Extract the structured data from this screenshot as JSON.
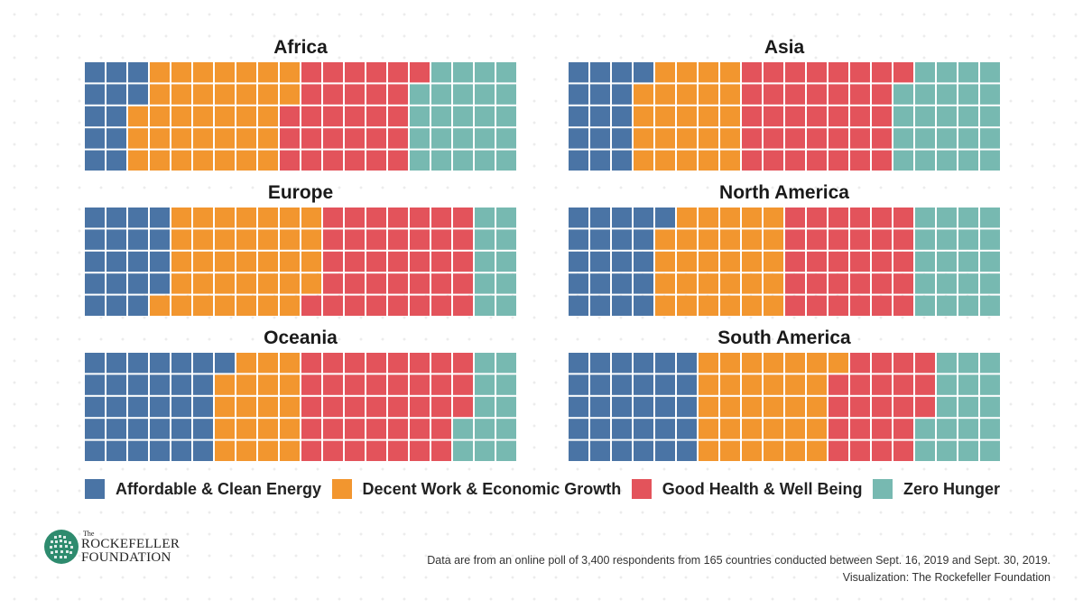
{
  "colors": {
    "energy": "#4a74a5",
    "work": "#f2962f",
    "health": "#e3535b",
    "hunger": "#77b9b1"
  },
  "chart_data": {
    "type": "waffle",
    "grid": {
      "columns": 20,
      "rows": 5
    },
    "series": [
      {
        "key": "energy",
        "name": "Affordable & Clean Energy"
      },
      {
        "key": "work",
        "name": "Decent Work & Economic Growth"
      },
      {
        "key": "health",
        "name": "Good Health & Well Being"
      },
      {
        "key": "hunger",
        "name": "Zero Hunger"
      }
    ],
    "panels": [
      {
        "title": "Africa",
        "values": [
          12,
          35,
          29,
          24
        ]
      },
      {
        "title": "Asia",
        "values": [
          16,
          24,
          36,
          24
        ]
      },
      {
        "title": "Europe",
        "values": [
          19,
          35,
          36,
          10
        ]
      },
      {
        "title": "North America",
        "values": [
          21,
          29,
          30,
          20
        ]
      },
      {
        "title": "Oceania",
        "values": [
          31,
          19,
          38,
          12
        ]
      },
      {
        "title": "South America",
        "values": [
          30,
          31,
          22,
          17
        ]
      }
    ]
  },
  "logo": {
    "the": "The",
    "line1": "ROCKEFELLER",
    "line2": "FOUNDATION"
  },
  "footnote": {
    "source": "Data are from an online poll of 3,400 respondents from 165 countries conducted between Sept. 16, 2019 and Sept. 30, 2019.",
    "credit": "Visualization: The Rockefeller Foundation"
  }
}
